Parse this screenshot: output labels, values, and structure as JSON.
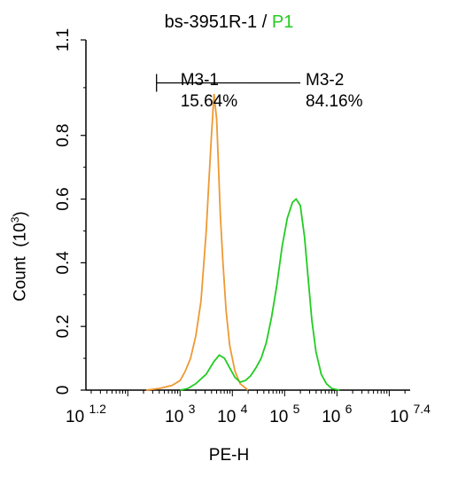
{
  "title": {
    "sample": "bs-3951R-1",
    "separator": " / ",
    "gate": "P1",
    "gate_color": "#22cc22"
  },
  "chart_data": {
    "type": "line",
    "xlabel": "PE-H",
    "ylabel": "Count",
    "ylabel_unit_base": "(10",
    "ylabel_unit_exp": "3",
    "ylabel_unit_close": ")",
    "x_scale": "log10",
    "xlim": [
      1.2,
      7.4
    ],
    "ylim": [
      0,
      1.1
    ],
    "x_ticks": [
      {
        "base": "10",
        "exp": "1.2",
        "value": 1.2
      },
      {
        "base": "10",
        "exp": "3",
        "value": 3
      },
      {
        "base": "10",
        "exp": "4",
        "value": 4
      },
      {
        "base": "10",
        "exp": "5",
        "value": 5
      },
      {
        "base": "10",
        "exp": "6",
        "value": 6
      },
      {
        "base": "10",
        "exp": "7.4",
        "value": 7.4
      }
    ],
    "y_ticks": [
      "0",
      "0.2",
      "0.4",
      "0.6",
      "0.8",
      "1.1"
    ],
    "y_tick_values": [
      0,
      0.2,
      0.4,
      0.6,
      0.8,
      1.1
    ],
    "grid": false,
    "series": [
      {
        "color": "#ee9933",
        "x": [
          2.35,
          2.6,
          2.85,
          3.0,
          3.1,
          3.2,
          3.3,
          3.4,
          3.5,
          3.55,
          3.6,
          3.65,
          3.7,
          3.73,
          3.77,
          3.82,
          3.88,
          3.95,
          4.05,
          4.15,
          4.3
        ],
        "y": [
          0.0,
          0.005,
          0.015,
          0.03,
          0.06,
          0.1,
          0.17,
          0.28,
          0.5,
          0.65,
          0.8,
          0.93,
          0.85,
          0.72,
          0.55,
          0.4,
          0.25,
          0.14,
          0.06,
          0.02,
          0.0
        ]
      },
      {
        "color": "#22cc22",
        "x": [
          3.0,
          3.15,
          3.3,
          3.5,
          3.65,
          3.75,
          3.85,
          3.95,
          4.05,
          4.15,
          4.25,
          4.35,
          4.45,
          4.55,
          4.65,
          4.75,
          4.85,
          4.95,
          5.05,
          5.15,
          5.22,
          5.3,
          5.38,
          5.45,
          5.52,
          5.6,
          5.7,
          5.8,
          5.9,
          6.05
        ],
        "y": [
          0.0,
          0.005,
          0.02,
          0.05,
          0.09,
          0.11,
          0.1,
          0.07,
          0.04,
          0.025,
          0.03,
          0.045,
          0.07,
          0.1,
          0.15,
          0.23,
          0.33,
          0.45,
          0.54,
          0.59,
          0.6,
          0.58,
          0.48,
          0.35,
          0.22,
          0.12,
          0.05,
          0.02,
          0.005,
          0.0
        ]
      }
    ],
    "markers": [
      {
        "name": "M3-1",
        "percent": "15.64%",
        "x_start": 2.55,
        "x_end": 4.25
      },
      {
        "name": "M3-2",
        "percent": "84.16%",
        "x_start": 4.25,
        "x_end": 5.3
      }
    ],
    "marker_y": 0.965
  }
}
